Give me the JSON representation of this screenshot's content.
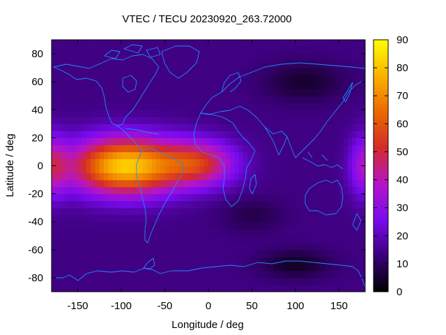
{
  "chart_data": {
    "type": "heatmap",
    "title": "VTEC / TECU 20230920_263.72000",
    "xlabel": "Longitude / deg",
    "ylabel": "Latitude / deg",
    "xlim": [
      -180,
      180
    ],
    "ylim": [
      -90,
      90
    ],
    "x_ticks": [
      -150,
      -100,
      -50,
      0,
      50,
      100,
      150
    ],
    "y_ticks": [
      -80,
      -60,
      -40,
      -20,
      0,
      20,
      40,
      60,
      80
    ],
    "colorbar": {
      "range": [
        0,
        90
      ],
      "ticks": [
        0,
        10,
        20,
        30,
        40,
        50,
        60,
        70,
        80,
        90
      ],
      "colors": [
        "#000000",
        "#3a0078",
        "#7a0af0",
        "#b515c8",
        "#d52a2a",
        "#ea6a00",
        "#fbb200",
        "#ffff00"
      ]
    },
    "grid": false,
    "legend": "colorbar-right",
    "z_grid_resolution_deg": [
      5,
      5
    ],
    "field_components": [
      {
        "kind": "background",
        "value": 14
      },
      {
        "kind": "crest",
        "peak": 82,
        "center_lon": -95,
        "center_lat": 0,
        "lon_width": 62,
        "lat_width": 20
      },
      {
        "kind": "crest",
        "peak": 48,
        "center_lon": -10,
        "center_lat": 2,
        "lon_width": 42,
        "lat_width": 16
      },
      {
        "kind": "crest",
        "peak": 38,
        "center_lon": 180,
        "center_lat": 0,
        "lon_width": 18,
        "lat_width": 22
      },
      {
        "kind": "crest",
        "peak": 38,
        "center_lon": -180,
        "center_lat": 0,
        "lon_width": 18,
        "lat_width": 22
      },
      {
        "kind": "depression",
        "depth": 9,
        "center_lon": 110,
        "center_lat": 60,
        "lon_width": 45,
        "lat_width": 14
      },
      {
        "kind": "depression",
        "depth": 10,
        "center_lon": 100,
        "center_lat": -70,
        "lon_width": 40,
        "lat_width": 10
      },
      {
        "kind": "depression",
        "depth": 6,
        "center_lon": 50,
        "center_lat": -35,
        "lon_width": 35,
        "lat_width": 12
      }
    ],
    "coastline_color": "#1e8cff"
  }
}
